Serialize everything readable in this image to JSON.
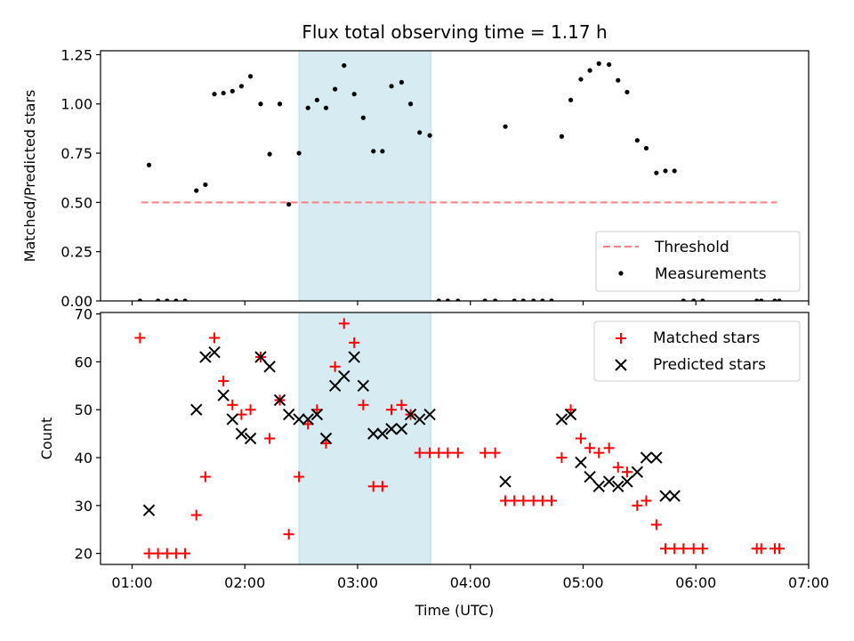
{
  "title": "Flux total observing time = 1.17 h",
  "x_axis": {
    "label": "Time (UTC)",
    "ticks": [
      {
        "value": 1,
        "label": "01:00"
      },
      {
        "value": 2,
        "label": "02:00"
      },
      {
        "value": 3,
        "label": "03:00"
      },
      {
        "value": 4,
        "label": "04:00"
      },
      {
        "value": 5,
        "label": "05:00"
      },
      {
        "value": 6,
        "label": "06:00"
      },
      {
        "value": 7,
        "label": "07:00"
      }
    ]
  },
  "chart_data": [
    {
      "type": "scatter",
      "ylabel": "Matched/Predicted stars",
      "xlim": [
        0.72,
        7.0
      ],
      "ylim": [
        0,
        1.27
      ],
      "yticks": [
        {
          "value": 0.0,
          "label": "0.00"
        },
        {
          "value": 0.25,
          "label": "0.25"
        },
        {
          "value": 0.5,
          "label": "0.50"
        },
        {
          "value": 0.75,
          "label": "0.75"
        },
        {
          "value": 1.0,
          "label": "1.00"
        },
        {
          "value": 1.25,
          "label": "1.25"
        }
      ],
      "highlight_span": {
        "x": [
          2.48,
          3.65
        ],
        "color": "#add8e6"
      },
      "threshold": {
        "name": "Threshold",
        "y": 0.5,
        "x": [
          1.08,
          6.72
        ],
        "color": "#ff8080"
      },
      "series": [
        {
          "name": "Measurements",
          "color": "#000000",
          "x": [
            1.07,
            1.15,
            1.23,
            1.31,
            1.39,
            1.47,
            1.57,
            1.65,
            1.73,
            1.81,
            1.89,
            1.97,
            2.05,
            2.14,
            2.22,
            2.31,
            2.39,
            2.48,
            2.56,
            2.64,
            2.72,
            2.8,
            2.88,
            2.97,
            3.05,
            3.14,
            3.22,
            3.3,
            3.39,
            3.47,
            3.55,
            3.64,
            3.72,
            3.8,
            3.89,
            4.13,
            4.22,
            4.31,
            4.39,
            4.47,
            4.56,
            4.64,
            4.72,
            4.81,
            4.89,
            4.98,
            5.06,
            5.14,
            5.23,
            5.31,
            5.39,
            5.48,
            5.56,
            5.65,
            5.73,
            5.81,
            5.89,
            5.98,
            6.06,
            6.54,
            6.58,
            6.7,
            6.74
          ],
          "y": [
            0,
            0.69,
            0,
            0,
            0,
            0,
            0.56,
            0.59,
            1.05,
            1.055,
            1.065,
            1.09,
            1.14,
            1.0,
            0.745,
            1.0,
            0.49,
            0.75,
            0.98,
            1.02,
            0.98,
            1.075,
            1.195,
            1.05,
            0.93,
            0.76,
            0.76,
            1.09,
            1.11,
            1.0,
            0.855,
            0.84,
            0,
            0,
            0,
            0,
            0,
            0.885,
            0,
            0,
            0,
            0,
            0,
            0.835,
            1.02,
            1.125,
            1.17,
            1.205,
            1.2,
            1.12,
            1.06,
            0.815,
            0.775,
            0.65,
            0.66,
            0.66,
            0,
            0,
            0,
            0,
            0,
            0,
            0
          ]
        }
      ],
      "legend": {
        "position": "lower right",
        "entries": [
          "Threshold",
          "Measurements"
        ]
      }
    },
    {
      "type": "scatter",
      "ylabel": "Count",
      "xlim": [
        0.72,
        7.0
      ],
      "ylim": [
        17.7,
        70.3
      ],
      "yticks": [
        {
          "value": 20,
          "label": "20"
        },
        {
          "value": 30,
          "label": "30"
        },
        {
          "value": 40,
          "label": "40"
        },
        {
          "value": 50,
          "label": "50"
        },
        {
          "value": 60,
          "label": "60"
        },
        {
          "value": 70,
          "label": "70"
        }
      ],
      "highlight_span": {
        "x": [
          2.48,
          3.65
        ],
        "color": "#add8e6"
      },
      "series": [
        {
          "name": "Matched stars",
          "marker": "plus",
          "color": "#ff0000",
          "x": [
            1.07,
            1.15,
            1.23,
            1.31,
            1.39,
            1.47,
            1.57,
            1.65,
            1.73,
            1.81,
            1.89,
            1.97,
            2.05,
            2.14,
            2.22,
            2.31,
            2.39,
            2.48,
            2.56,
            2.64,
            2.72,
            2.8,
            2.88,
            2.97,
            3.05,
            3.14,
            3.22,
            3.3,
            3.39,
            3.47,
            3.55,
            3.64,
            3.72,
            3.8,
            3.89,
            4.13,
            4.22,
            4.31,
            4.39,
            4.47,
            4.56,
            4.64,
            4.72,
            4.81,
            4.89,
            4.98,
            5.06,
            5.14,
            5.23,
            5.31,
            5.39,
            5.48,
            5.56,
            5.65,
            5.73,
            5.81,
            5.89,
            5.98,
            6.06,
            6.54,
            6.58,
            6.7,
            6.74
          ],
          "y": [
            65,
            20,
            20,
            20,
            20,
            20,
            28,
            36,
            65,
            56,
            51,
            49,
            50,
            61,
            44,
            52,
            24,
            36,
            47,
            50,
            43,
            59,
            68,
            64,
            51,
            34,
            34,
            50,
            51,
            49,
            41,
            41,
            41,
            41,
            41,
            41,
            41,
            31,
            31,
            31,
            31,
            31,
            31,
            40,
            50,
            44,
            42,
            41,
            42,
            38,
            37,
            30,
            31,
            26,
            21,
            21,
            21,
            21,
            21,
            21,
            21,
            21,
            21
          ]
        },
        {
          "name": "Predicted stars",
          "marker": "cross",
          "color": "#000000",
          "x": [
            1.15,
            1.57,
            1.65,
            1.73,
            1.81,
            1.89,
            1.97,
            2.05,
            2.14,
            2.22,
            2.31,
            2.39,
            2.48,
            2.56,
            2.64,
            2.72,
            2.8,
            2.88,
            2.97,
            3.05,
            3.14,
            3.22,
            3.3,
            3.39,
            3.47,
            3.55,
            3.64,
            4.31,
            4.81,
            4.89,
            4.98,
            5.06,
            5.14,
            5.23,
            5.31,
            5.39,
            5.48,
            5.56,
            5.65,
            5.73,
            5.81
          ],
          "y": [
            29,
            50,
            61,
            62,
            53,
            48,
            45,
            44,
            61,
            59,
            52,
            49,
            48,
            48,
            49,
            44,
            55,
            57,
            61,
            55,
            45,
            45,
            46,
            46,
            49,
            48,
            49,
            35,
            48,
            49,
            39,
            36,
            34,
            35,
            34,
            35,
            37,
            40,
            40,
            32,
            32
          ]
        }
      ],
      "legend": {
        "position": "upper right",
        "entries": [
          "Matched stars",
          "Predicted stars"
        ]
      }
    }
  ]
}
